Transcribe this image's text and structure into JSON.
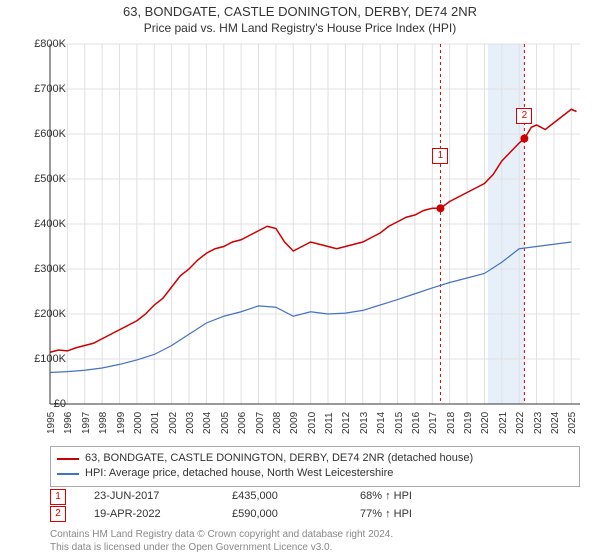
{
  "title": "63, BONDGATE, CASTLE DONINGTON, DERBY, DE74 2NR",
  "subtitle": "Price paid vs. HM Land Registry's House Price Index (HPI)",
  "chart": {
    "type": "line",
    "background_color": "#ffffff",
    "grid_color": "#e0e0e0",
    "axis_color": "#333333",
    "xlim": [
      1995,
      2025.5
    ],
    "ylim": [
      0,
      800000
    ],
    "ytick_step": 100000,
    "ytick_labels": [
      "£0",
      "£100K",
      "£200K",
      "£300K",
      "£400K",
      "£500K",
      "£600K",
      "£700K",
      "£800K"
    ],
    "xtick_years": [
      1995,
      1996,
      1997,
      1998,
      1999,
      2000,
      2001,
      2002,
      2003,
      2004,
      2005,
      2006,
      2007,
      2008,
      2009,
      2010,
      2011,
      2012,
      2013,
      2014,
      2015,
      2016,
      2017,
      2018,
      2019,
      2020,
      2021,
      2022,
      2023,
      2024,
      2025
    ],
    "shaded_band": {
      "xstart": 2020.2,
      "xend": 2022.3,
      "color": "#cfe2f3",
      "opacity": 0.5
    },
    "series": [
      {
        "name": "property",
        "label": "63, BONDGATE, CASTLE DONINGTON, DERBY, DE74 2NR (detached house)",
        "color": "#cc0000",
        "line_width": 1.5,
        "points": [
          [
            1995,
            115000
          ],
          [
            1995.5,
            120000
          ],
          [
            1996,
            118000
          ],
          [
            1996.5,
            125000
          ],
          [
            1997,
            130000
          ],
          [
            1997.5,
            135000
          ],
          [
            1998,
            145000
          ],
          [
            1998.5,
            155000
          ],
          [
            1999,
            165000
          ],
          [
            1999.5,
            175000
          ],
          [
            2000,
            185000
          ],
          [
            2000.5,
            200000
          ],
          [
            2001,
            220000
          ],
          [
            2001.5,
            235000
          ],
          [
            2002,
            260000
          ],
          [
            2002.5,
            285000
          ],
          [
            2003,
            300000
          ],
          [
            2003.5,
            320000
          ],
          [
            2004,
            335000
          ],
          [
            2004.5,
            345000
          ],
          [
            2005,
            350000
          ],
          [
            2005.5,
            360000
          ],
          [
            2006,
            365000
          ],
          [
            2006.5,
            375000
          ],
          [
            2007,
            385000
          ],
          [
            2007.5,
            395000
          ],
          [
            2008,
            390000
          ],
          [
            2008.5,
            360000
          ],
          [
            2009,
            340000
          ],
          [
            2009.5,
            350000
          ],
          [
            2010,
            360000
          ],
          [
            2010.5,
            355000
          ],
          [
            2011,
            350000
          ],
          [
            2011.5,
            345000
          ],
          [
            2012,
            350000
          ],
          [
            2012.5,
            355000
          ],
          [
            2013,
            360000
          ],
          [
            2013.5,
            370000
          ],
          [
            2014,
            380000
          ],
          [
            2014.5,
            395000
          ],
          [
            2015,
            405000
          ],
          [
            2015.5,
            415000
          ],
          [
            2016,
            420000
          ],
          [
            2016.5,
            430000
          ],
          [
            2017,
            435000
          ],
          [
            2017.47,
            435000
          ],
          [
            2018,
            450000
          ],
          [
            2018.5,
            460000
          ],
          [
            2019,
            470000
          ],
          [
            2019.5,
            480000
          ],
          [
            2020,
            490000
          ],
          [
            2020.5,
            510000
          ],
          [
            2021,
            540000
          ],
          [
            2021.5,
            560000
          ],
          [
            2022,
            580000
          ],
          [
            2022.3,
            590000
          ],
          [
            2022.7,
            615000
          ],
          [
            2023,
            620000
          ],
          [
            2023.5,
            610000
          ],
          [
            2024,
            625000
          ],
          [
            2024.5,
            640000
          ],
          [
            2025,
            655000
          ],
          [
            2025.3,
            650000
          ]
        ]
      },
      {
        "name": "hpi",
        "label": "HPI: Average price, detached house, North West Leicestershire",
        "color": "#4472c4",
        "line_width": 1.2,
        "points": [
          [
            1995,
            70000
          ],
          [
            1996,
            72000
          ],
          [
            1997,
            75000
          ],
          [
            1998,
            80000
          ],
          [
            1999,
            88000
          ],
          [
            2000,
            98000
          ],
          [
            2001,
            110000
          ],
          [
            2002,
            130000
          ],
          [
            2003,
            155000
          ],
          [
            2004,
            180000
          ],
          [
            2005,
            195000
          ],
          [
            2006,
            205000
          ],
          [
            2007,
            218000
          ],
          [
            2008,
            215000
          ],
          [
            2009,
            195000
          ],
          [
            2010,
            205000
          ],
          [
            2011,
            200000
          ],
          [
            2012,
            202000
          ],
          [
            2013,
            208000
          ],
          [
            2014,
            220000
          ],
          [
            2015,
            232000
          ],
          [
            2016,
            245000
          ],
          [
            2017,
            258000
          ],
          [
            2018,
            270000
          ],
          [
            2019,
            280000
          ],
          [
            2020,
            290000
          ],
          [
            2021,
            315000
          ],
          [
            2022,
            345000
          ],
          [
            2023,
            350000
          ],
          [
            2024,
            355000
          ],
          [
            2025,
            360000
          ]
        ]
      }
    ],
    "sale_markers": [
      {
        "n": "1",
        "x": 2017.47,
        "y": 435000,
        "date": "23-JUN-2017",
        "price": "£435,000",
        "pct": "68% ↑ HPI",
        "dash_color": "#d00"
      },
      {
        "n": "2",
        "x": 2022.3,
        "y": 590000,
        "date": "19-APR-2022",
        "price": "£590,000",
        "pct": "77% ↑ HPI",
        "dash_color": "#d00"
      }
    ],
    "annotation_box_offset_y": -26
  },
  "credit_line1": "Contains HM Land Registry data © Crown copyright and database right 2024.",
  "credit_line2": "This data is licensed under the Open Government Licence v3.0."
}
